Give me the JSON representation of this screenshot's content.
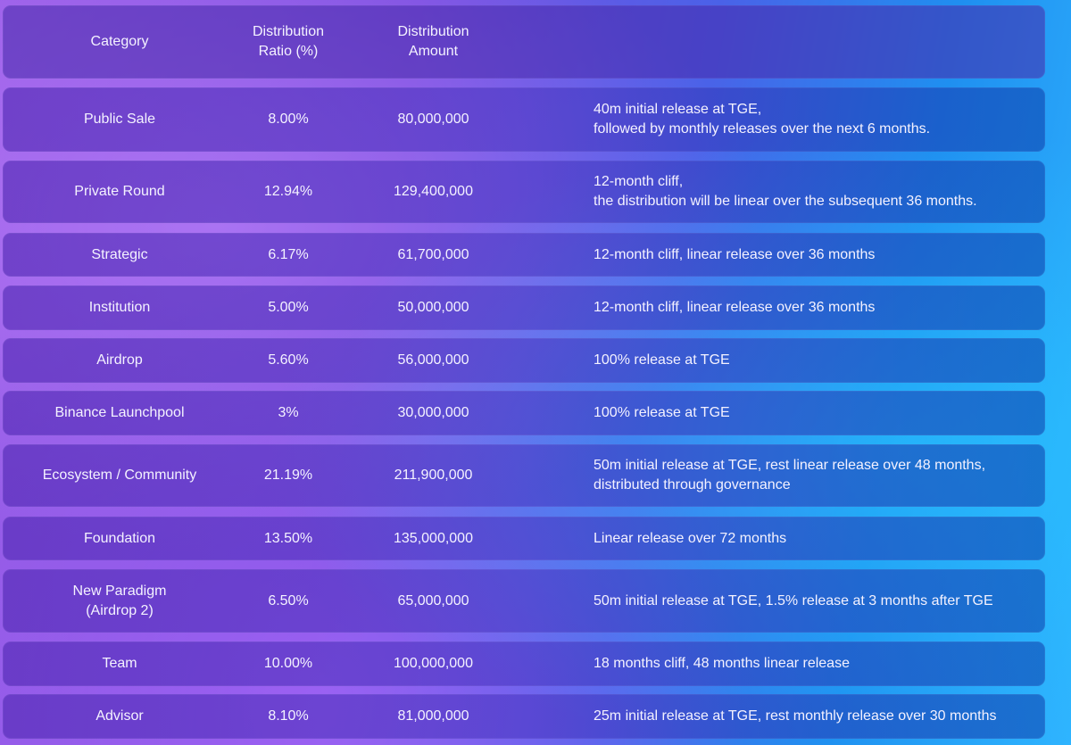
{
  "headers": [
    "Category",
    "Distribution\nRatio (%)",
    "Distribution\nAmount",
    ""
  ],
  "rows": [
    {
      "category": "Public Sale",
      "ratio": "8.00%",
      "amount": "80,000,000",
      "notes": "40m initial release at TGE,\nfollowed by monthly releases over the next 6 months."
    },
    {
      "category": "Private Round",
      "ratio": "12.94%",
      "amount": "129,400,000",
      "notes": "12-month cliff,\nthe distribution will be linear over the subsequent 36 months."
    },
    {
      "category": "Strategic",
      "ratio": "6.17%",
      "amount": "61,700,000",
      "notes": "12-month cliff, linear release over 36 months"
    },
    {
      "category": "Institution",
      "ratio": "5.00%",
      "amount": "50,000,000",
      "notes": "12-month cliff, linear release over 36 months"
    },
    {
      "category": "Airdrop",
      "ratio": "5.60%",
      "amount": "56,000,000",
      "notes": "100% release at TGE"
    },
    {
      "category": "Binance Launchpool",
      "ratio": "3%",
      "amount": "30,000,000",
      "notes": "100% release at TGE"
    },
    {
      "category": "Ecosystem / Community",
      "ratio": "21.19%",
      "amount": "211,900,000",
      "notes": "50m initial release at TGE, rest linear release over 48 months,\ndistributed through governance"
    },
    {
      "category": "Foundation",
      "ratio": "13.50%",
      "amount": "135,000,000",
      "notes": "Linear release over 72 months"
    },
    {
      "category": "New Paradigm\n(Airdrop 2)",
      "ratio": "6.50%",
      "amount": "65,000,000",
      "notes": "50m initial release at TGE, 1.5% release at 3 months after TGE"
    },
    {
      "category": "Team",
      "ratio": "10.00%",
      "amount": "100,000,000",
      "notes": "18 months cliff, 48 months linear release"
    },
    {
      "category": "Advisor",
      "ratio": "8.10%",
      "amount": "81,000,000",
      "notes": "25m initial release at TGE, rest monthly release over 30 months"
    }
  ],
  "colors": {
    "background_left": "#8a55e6",
    "background_right": "#2fb4ff",
    "text": "#f4f2ff"
  }
}
